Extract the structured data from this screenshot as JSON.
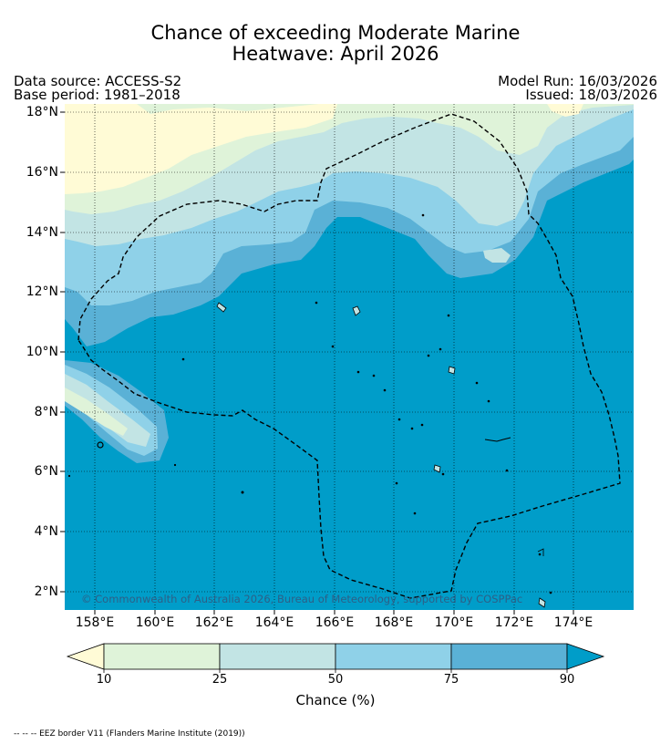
{
  "title": {
    "line1": "Chance of exceeding Moderate Marine",
    "line2": "Heatwave: April 2026"
  },
  "meta": {
    "data_source": "Data source: ACCESS-S2",
    "base_period": "Base period: 1981–2018",
    "model_run": "Model Run: 16/03/2026",
    "issued": "Issued: 18/03/2026"
  },
  "map": {
    "lat_labels": [
      "18°N",
      "16°N",
      "14°N",
      "12°N",
      "10°N",
      "8°N",
      "6°N",
      "4°N",
      "2°N"
    ],
    "lon_labels": [
      "158°E",
      "160°E",
      "162°E",
      "164°E",
      "166°E",
      "168°E",
      "170°E",
      "172°E",
      "174°E"
    ],
    "copyright": "© Commonwealth of Australia 2026, Bureau of Meteorology, supported by COSPPac",
    "colors": {
      "below_10": "#fffbd6",
      "10_25": "#dff3d9",
      "25_50": "#c2e4e4",
      "50_75": "#8fd1e8",
      "75_90": "#5ab1d6",
      "above_90": "#009dc9"
    }
  },
  "colorbar": {
    "ticks": [
      "10",
      "25",
      "50",
      "75",
      "90"
    ],
    "label": "Chance (%)"
  },
  "footnote": "-- -- -- EEZ border V11 (Flanders Marine Institute (2019))"
}
